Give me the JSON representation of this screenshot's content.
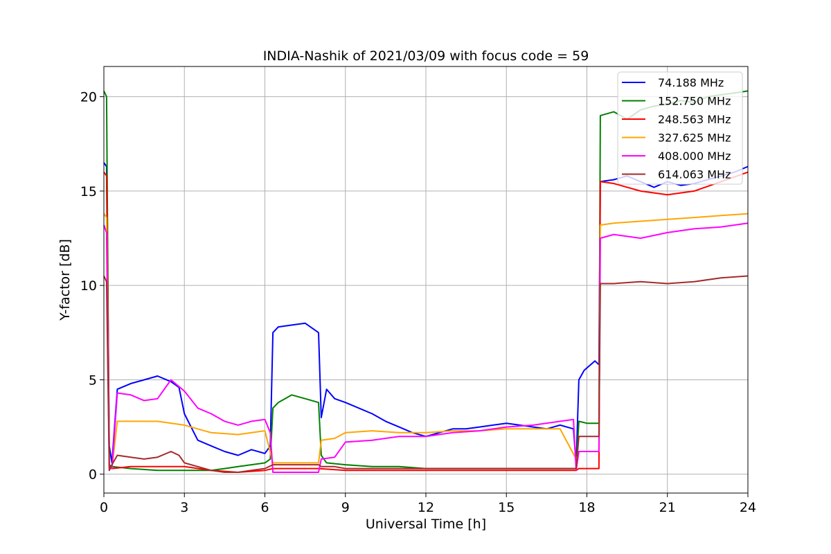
{
  "chart_data": {
    "type": "line",
    "title": "INDIA-Nashik of 2021/03/09 with focus code = 59",
    "xlabel": "Universal Time [h]",
    "ylabel": "Y-factor [dB]",
    "xlim": [
      0,
      24
    ],
    "ylim": [
      -1,
      21.6
    ],
    "xticks": [
      0,
      3,
      6,
      9,
      12,
      15,
      18,
      21,
      24
    ],
    "yticks": [
      0,
      5,
      10,
      15,
      20
    ],
    "grid": true,
    "legend_position": "top-right",
    "series": [
      {
        "name": "74.188 MHz",
        "legend_label": "  74.188 MHz",
        "color": "#0000ff",
        "x": [
          0,
          0.1,
          0.2,
          0.3,
          0.5,
          1,
          1.5,
          2,
          2.5,
          2.8,
          3,
          3.5,
          4,
          4.5,
          5,
          5.5,
          6,
          6.2,
          6.3,
          6.5,
          7,
          7.5,
          8,
          8.1,
          8.3,
          8.6,
          9,
          9.5,
          10,
          10.5,
          11,
          11.5,
          12,
          12.5,
          13,
          13.5,
          14,
          14.5,
          15,
          15.5,
          16,
          16.5,
          17,
          17.5,
          17.6,
          17.7,
          17.9,
          18.3,
          18.45,
          18.5,
          19,
          19.5,
          20,
          20.5,
          21,
          21.5,
          22,
          22.5,
          23,
          23.5,
          24
        ],
        "y": [
          16.5,
          16.3,
          1.5,
          0.6,
          4.5,
          4.8,
          5.0,
          5.2,
          4.9,
          4.6,
          3.2,
          1.8,
          1.5,
          1.2,
          1.0,
          1.3,
          1.1,
          1.5,
          7.5,
          7.8,
          7.9,
          8.0,
          7.5,
          3.0,
          4.5,
          4.0,
          3.8,
          3.5,
          3.2,
          2.8,
          2.5,
          2.2,
          2.0,
          2.2,
          2.4,
          2.4,
          2.5,
          2.6,
          2.7,
          2.6,
          2.5,
          2.4,
          2.6,
          2.4,
          0.5,
          5.0,
          5.5,
          6.0,
          5.8,
          15.5,
          15.6,
          15.8,
          15.5,
          15.2,
          15.5,
          15.3,
          15.4,
          15.6,
          15.8,
          16.0,
          16.3
        ]
      },
      {
        "name": "152.750 MHz",
        "legend_label": "152.750 MHz",
        "color": "#008000",
        "x": [
          0,
          0.1,
          0.2,
          0.3,
          1,
          2,
          3,
          4,
          4.5,
          5,
          5.5,
          6,
          6.2,
          6.3,
          6.5,
          7,
          7.5,
          8,
          8.1,
          8.3,
          9,
          10,
          11,
          12,
          13,
          14,
          15,
          16,
          17,
          17.5,
          17.6,
          17.7,
          18,
          18.45,
          18.5,
          19,
          19.5,
          20,
          20.5,
          21,
          21.5,
          22,
          22.5,
          23,
          23.5,
          24
        ],
        "y": [
          20.3,
          20.0,
          0.5,
          0.4,
          0.3,
          0.2,
          0.2,
          0.2,
          0.3,
          0.4,
          0.5,
          0.6,
          0.8,
          3.5,
          3.8,
          4.2,
          4.0,
          3.8,
          1.0,
          0.6,
          0.5,
          0.4,
          0.4,
          0.3,
          0.3,
          0.3,
          0.3,
          0.3,
          0.3,
          0.3,
          0.3,
          2.8,
          2.7,
          2.7,
          19.0,
          19.2,
          18.8,
          19.3,
          19.5,
          19.6,
          19.8,
          19.7,
          20.0,
          20.1,
          20.2,
          20.3
        ]
      },
      {
        "name": "248.563 MHz",
        "legend_label": "248.563 MHz",
        "color": "#ff0000",
        "x": [
          0,
          0.1,
          0.2,
          0.3,
          1,
          2,
          3,
          4,
          5,
          6,
          6.3,
          7,
          8,
          9,
          10,
          11,
          12,
          13,
          14,
          15,
          16,
          17,
          17.6,
          17.7,
          18.45,
          18.5,
          19,
          20,
          21,
          22,
          23,
          24
        ],
        "y": [
          16.0,
          15.8,
          0.4,
          0.3,
          0.4,
          0.4,
          0.4,
          0.2,
          0.1,
          0.2,
          0.3,
          0.3,
          0.3,
          0.2,
          0.2,
          0.2,
          0.2,
          0.2,
          0.2,
          0.2,
          0.2,
          0.2,
          0.2,
          0.3,
          0.3,
          15.5,
          15.4,
          15.0,
          14.8,
          15.0,
          15.5,
          16.0
        ]
      },
      {
        "name": "327.625 MHz",
        "legend_label": "327.625 MHz",
        "color": "#ffa500",
        "x": [
          0,
          0.1,
          0.2,
          0.3,
          0.5,
          1,
          2,
          3,
          4,
          5,
          6,
          6.3,
          7,
          8,
          8.1,
          8.6,
          9,
          10,
          11,
          12,
          13,
          14,
          15,
          16,
          17,
          17.6,
          17.7,
          18.45,
          18.5,
          19,
          20,
          21,
          22,
          23,
          24
        ],
        "y": [
          13.8,
          13.6,
          0.3,
          0.3,
          2.8,
          2.8,
          2.8,
          2.6,
          2.2,
          2.1,
          2.3,
          0.6,
          0.6,
          0.6,
          1.8,
          1.9,
          2.2,
          2.3,
          2.2,
          2.2,
          2.3,
          2.3,
          2.4,
          2.4,
          2.4,
          0.8,
          1.2,
          1.2,
          13.2,
          13.3,
          13.4,
          13.5,
          13.6,
          13.7,
          13.8
        ]
      },
      {
        "name": "408.000 MHz",
        "legend_label": "408.000 MHz",
        "color": "#ff00ff",
        "x": [
          0,
          0.1,
          0.2,
          0.3,
          0.5,
          1,
          1.5,
          2,
          2.5,
          3,
          3.5,
          4,
          4.5,
          5,
          5.5,
          6,
          6.2,
          6.3,
          7,
          8,
          8.1,
          8.6,
          9,
          10,
          11,
          12,
          13,
          14,
          15,
          16,
          17,
          17.5,
          17.6,
          17.7,
          18.45,
          18.5,
          19,
          20,
          21,
          22,
          23,
          24
        ],
        "y": [
          13.2,
          12.8,
          0.4,
          0.3,
          4.3,
          4.2,
          3.9,
          4.0,
          5.0,
          4.4,
          3.5,
          3.2,
          2.8,
          2.6,
          2.8,
          2.9,
          2.2,
          0.1,
          0.1,
          0.1,
          0.8,
          0.9,
          1.7,
          1.8,
          2.0,
          2.0,
          2.2,
          2.3,
          2.5,
          2.6,
          2.8,
          2.9,
          0.2,
          1.2,
          1.2,
          12.5,
          12.7,
          12.5,
          12.8,
          13.0,
          13.1,
          13.3
        ]
      },
      {
        "name": "614.063 MHz",
        "legend_label": "614.063 MHz",
        "color": "#a52a2a",
        "x": [
          0,
          0.1,
          0.2,
          0.3,
          0.5,
          1,
          1.5,
          2,
          2.5,
          2.8,
          3,
          3.5,
          4,
          4.5,
          5,
          5.5,
          6,
          6.3,
          7,
          8,
          8.1,
          8.6,
          9,
          10,
          11,
          12,
          13,
          14,
          15,
          16,
          17,
          17.6,
          17.7,
          18.45,
          18.5,
          19,
          20,
          21,
          22,
          23,
          24
        ],
        "y": [
          10.5,
          10.2,
          0.2,
          0.5,
          1.0,
          0.9,
          0.8,
          0.9,
          1.2,
          1.0,
          0.6,
          0.4,
          0.2,
          0.1,
          0.1,
          0.2,
          0.3,
          0.5,
          0.5,
          0.5,
          0.4,
          0.4,
          0.3,
          0.3,
          0.3,
          0.3,
          0.3,
          0.3,
          0.3,
          0.3,
          0.3,
          0.3,
          2.0,
          2.0,
          10.1,
          10.1,
          10.2,
          10.1,
          10.2,
          10.4,
          10.5
        ]
      }
    ]
  }
}
